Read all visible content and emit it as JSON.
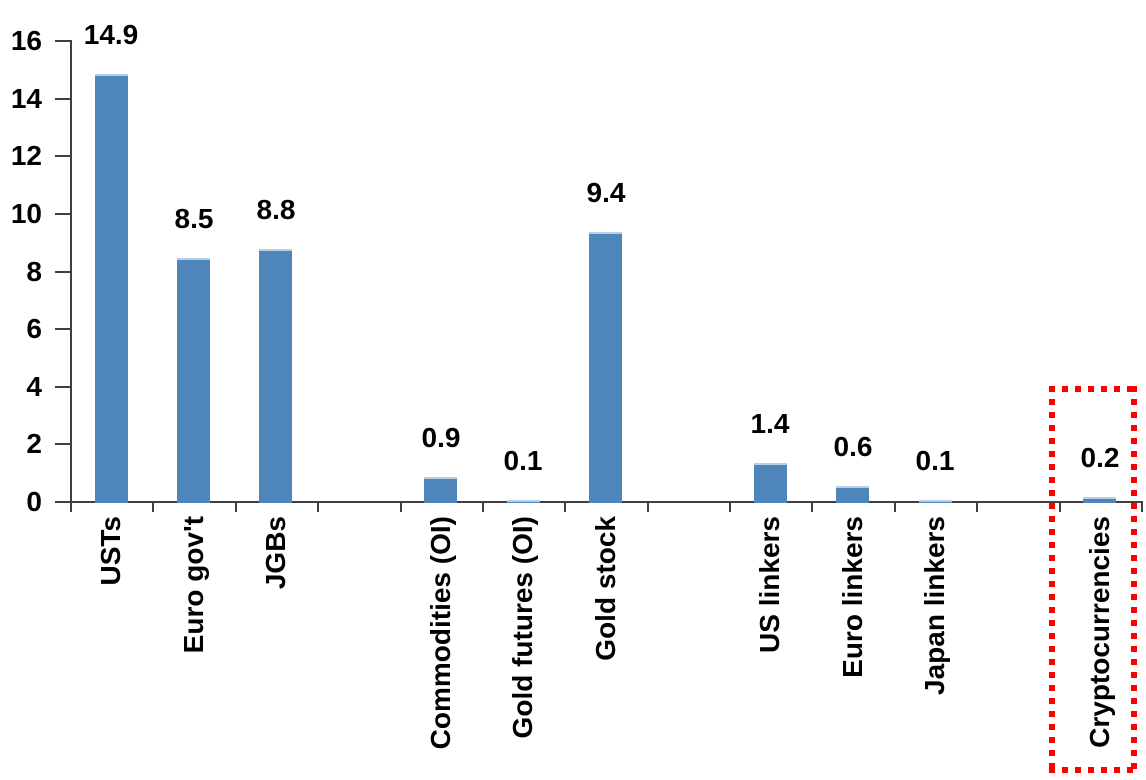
{
  "page": {
    "background": "#ffffff"
  },
  "chart_data": {
    "type": "bar",
    "title": "",
    "xlabel": "",
    "ylabel": "",
    "categories": [
      "USTs",
      "Euro gov't",
      "JGBs",
      "",
      "Commodities (OI)",
      "Gold futures (OI)",
      "Gold stock",
      "",
      "US linkers",
      "Euro linkers",
      "Japan linkers",
      "",
      "Cryptocurrencies"
    ],
    "values": [
      14.9,
      8.5,
      8.8,
      null,
      0.9,
      0.1,
      9.4,
      null,
      1.4,
      0.6,
      0.1,
      null,
      0.2
    ],
    "ylim": [
      0,
      16
    ],
    "yticks": [
      0,
      2,
      4,
      6,
      8,
      10,
      12,
      14,
      16
    ],
    "grid": false,
    "legend": "none",
    "value_labels_shown": true,
    "bar_color": "#4E86BC",
    "bar_top_edge_color": "#B8CFE4",
    "axis_color": "#404040",
    "text_color": "#000000",
    "highlight": {
      "category": "Cryptocurrencies",
      "style": "dotted-box",
      "color": "#FF0000"
    }
  }
}
